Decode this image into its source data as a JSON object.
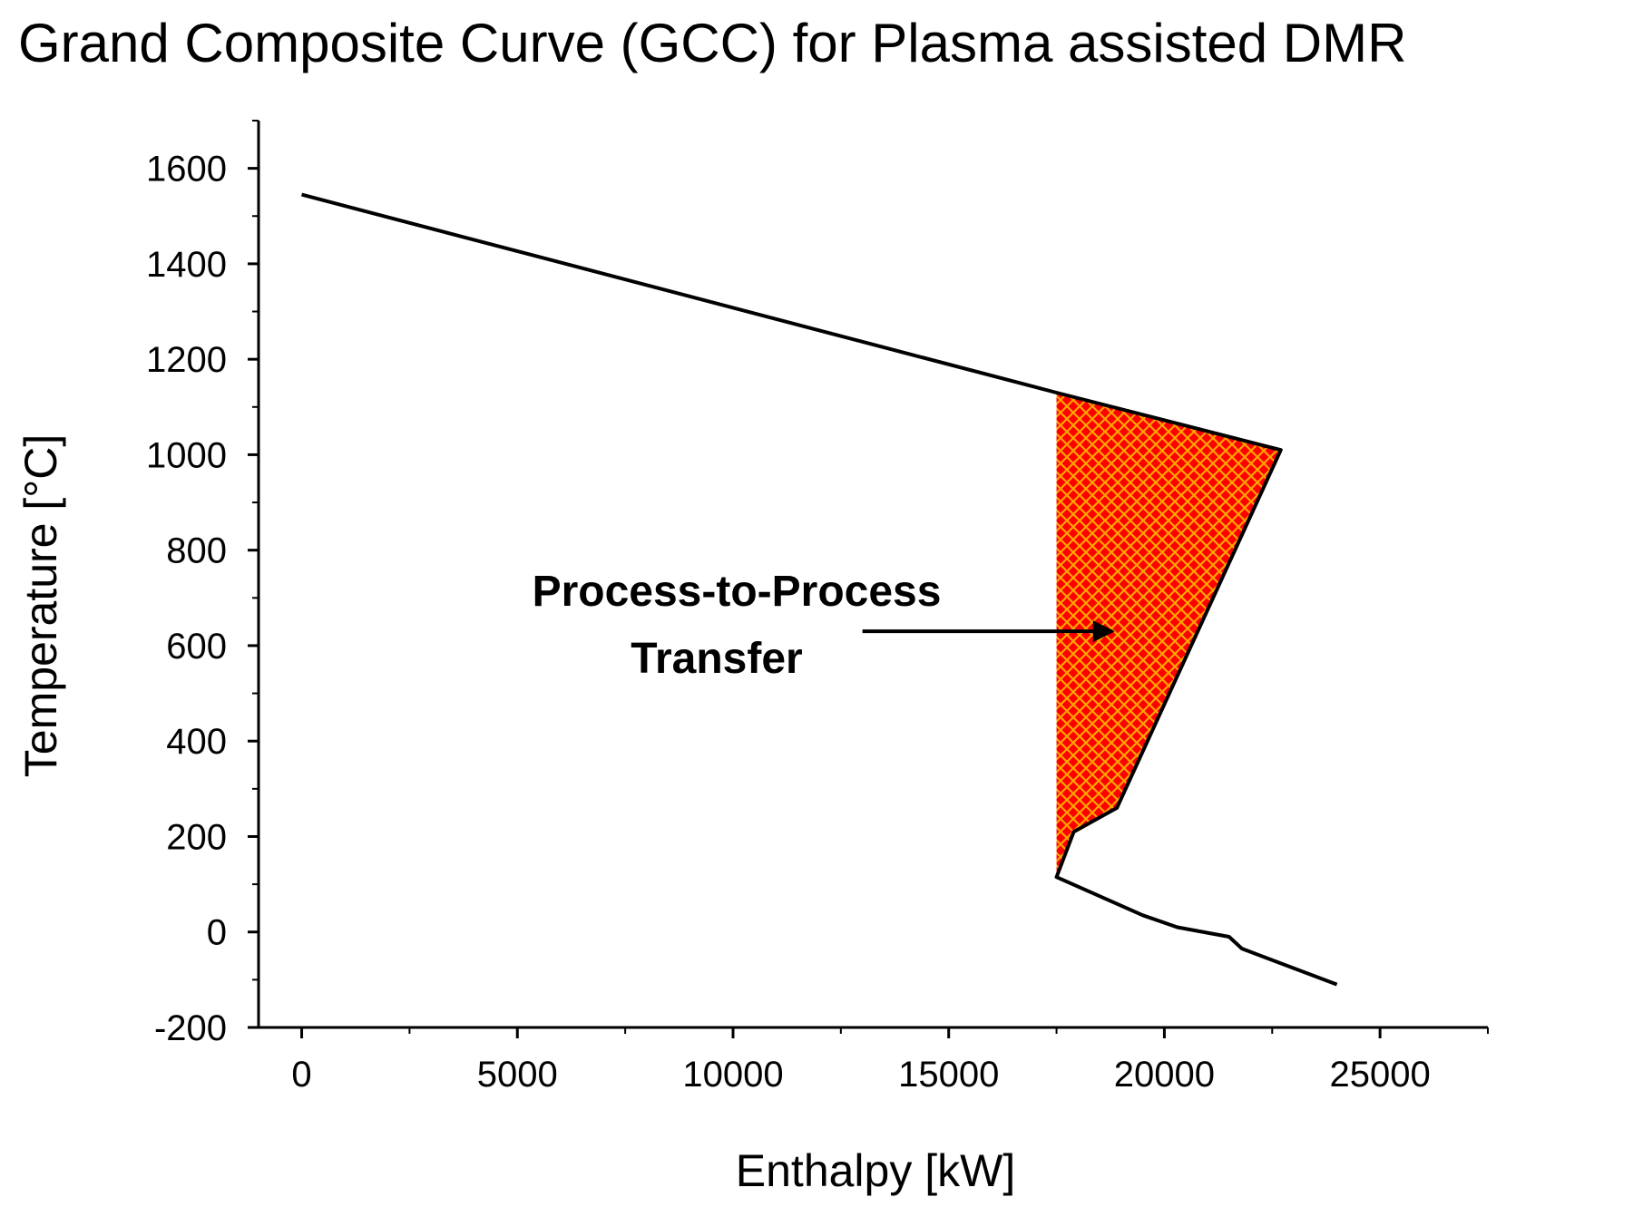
{
  "chart_data": {
    "type": "line",
    "title": "Grand Composite Curve (GCC) for Plasma assisted DMR",
    "xlabel": "Enthalpy  [kW]",
    "ylabel": "Temperature  [°C]",
    "xlim": [
      -1000,
      27500
    ],
    "ylim": [
      -200,
      1700
    ],
    "x_ticks": [
      0,
      5000,
      10000,
      15000,
      20000,
      25000
    ],
    "x_tick_labels": [
      "0",
      "5000",
      "10000",
      "15000",
      "20000",
      "25000"
    ],
    "y_ticks": [
      -200,
      0,
      200,
      400,
      600,
      800,
      1000,
      1200,
      1400,
      1600
    ],
    "y_tick_labels": [
      "-200",
      "0",
      "200",
      "400",
      "600",
      "800",
      "1000",
      "1200",
      "1400",
      "1600"
    ],
    "grid": false,
    "series": [
      {
        "name": "GCC",
        "color": "#000000",
        "points": [
          [
            0,
            1545
          ],
          [
            17500,
            1130
          ],
          [
            22700,
            1010
          ],
          [
            18900,
            260
          ],
          [
            17900,
            210
          ],
          [
            17500,
            115
          ],
          [
            19500,
            35
          ],
          [
            20300,
            10
          ],
          [
            21500,
            -10
          ],
          [
            21800,
            -35
          ],
          [
            24000,
            -110
          ]
        ]
      }
    ],
    "shaded_region": {
      "name": "Process-to-Process Transfer",
      "fill_color": "#ff0000",
      "hatch_color": "#ffa500",
      "points": [
        [
          17500,
          1130
        ],
        [
          22700,
          1010
        ],
        [
          18900,
          260
        ],
        [
          17900,
          210
        ],
        [
          17500,
          115
        ]
      ]
    },
    "annotation": {
      "lines": [
        "Process-to-Process",
        "Transfer"
      ],
      "arrow_from": [
        13000,
        630
      ],
      "arrow_to": [
        18800,
        630
      ]
    }
  }
}
